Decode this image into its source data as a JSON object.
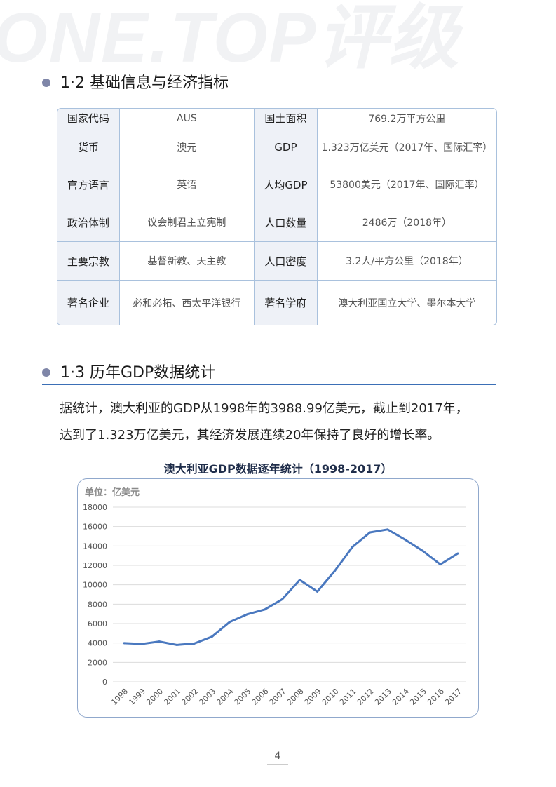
{
  "watermark": "ONE.TOP评级",
  "section1": {
    "title": "1·2 基础信息与经济指标"
  },
  "table": {
    "rows": [
      [
        "国家代码",
        "AUS",
        "国土面积",
        "769.2万平方公里"
      ],
      [
        "货币",
        "澳元",
        "GDP",
        "1.323万亿美元（2017年、国际汇率）"
      ],
      [
        "官方语言",
        "英语",
        "人均GDP",
        "53800美元（2017年、国际汇率）"
      ],
      [
        "政治体制",
        "议会制君主立宪制",
        "人口数量",
        "2486万（2018年）"
      ],
      [
        "主要宗教",
        "基督新教、天主教",
        "人口密度",
        "3.2人/平方公里（2018年）"
      ],
      [
        "著名企业",
        "必和必拓、西太平洋银行",
        "著名学府",
        "澳大利亚国立大学、墨尔本大学"
      ]
    ]
  },
  "section2": {
    "title": "1·3 历年GDP数据统计"
  },
  "paragraph": [
    "据统计，澳大利亚的GDP从1998年的3988.99亿美元，截止到2017年，",
    "达到了1.323万亿美元，其经济发展连续20年保持了良好的增长率。"
  ],
  "chart_data": {
    "type": "line",
    "title": "澳大利亚GDP数据逐年统计（1998-2017）",
    "unit_label": "单位：亿美元",
    "categories": [
      "1998",
      "1999",
      "2000",
      "2001",
      "2002",
      "2003",
      "2004",
      "2005",
      "2006",
      "2007",
      "2008",
      "2009",
      "2010",
      "2011",
      "2012",
      "2013",
      "2014",
      "2015",
      "2016",
      "2017"
    ],
    "values": [
      3989,
      3900,
      4150,
      3800,
      3950,
      4650,
      6150,
      6950,
      7450,
      8500,
      10500,
      9300,
      11450,
      13900,
      15400,
      15700,
      14650,
      13500,
      12100,
      13230
    ],
    "ylim": [
      0,
      18000
    ],
    "yticks": [
      0,
      2000,
      4000,
      6000,
      8000,
      10000,
      12000,
      14000,
      16000,
      18000
    ],
    "grid": true,
    "line_color": "#4a78bf"
  },
  "page_number": "4"
}
